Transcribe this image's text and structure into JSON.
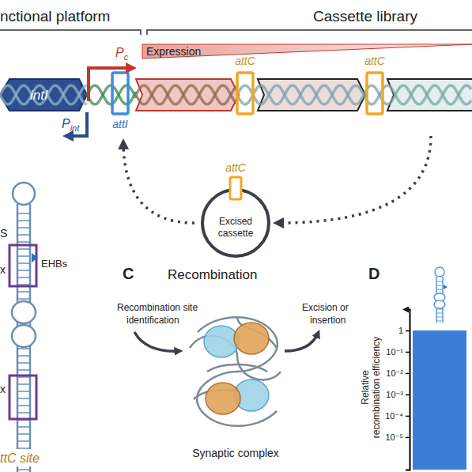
{
  "diagram": {
    "headers": {
      "platform": "nctional platform",
      "library": "Cassette library"
    },
    "promoters": [
      {
        "label": "P",
        "sub": "c"
      },
      {
        "label": "P",
        "sub": "int"
      }
    ],
    "expression": "Expression",
    "gene": "intI",
    "sites": {
      "attI": "attI",
      "attC": [
        "attC",
        "attC",
        "attC"
      ]
    },
    "excised": [
      "Excised",
      "cassette"
    ],
    "structure": {
      "fragments": [
        "S",
        "x",
        "x"
      ],
      "ehbs": "EHBs",
      "site": "ttC site"
    },
    "recombination": {
      "letter": "C",
      "title": "Recombination",
      "left": [
        "Recombination site",
        "identification"
      ],
      "right": [
        "Excision or",
        "insertion"
      ],
      "caption": "Synaptic complex"
    },
    "panel_d": {
      "letter": "D"
    }
  },
  "chart_data": {
    "type": "bar",
    "categories": [
      null
    ],
    "values": [
      1
    ],
    "color": "#3a7fd5",
    "log": "y",
    "ylim": [
      3e-07,
      10
    ],
    "yticks": [
      {
        "value": 1e-05,
        "label": "10⁻⁵"
      },
      {
        "value": 0.0001,
        "label": "10⁻⁴"
      },
      {
        "value": 0.001,
        "label": "10⁻³"
      },
      {
        "value": 0.01,
        "label": "10⁻²"
      },
      {
        "value": 0.1,
        "label": "10⁻¹"
      },
      1
    ],
    "ylabel": [
      "Relative",
      "recombination efficiency"
    ],
    "tick_labels": "y"
  }
}
